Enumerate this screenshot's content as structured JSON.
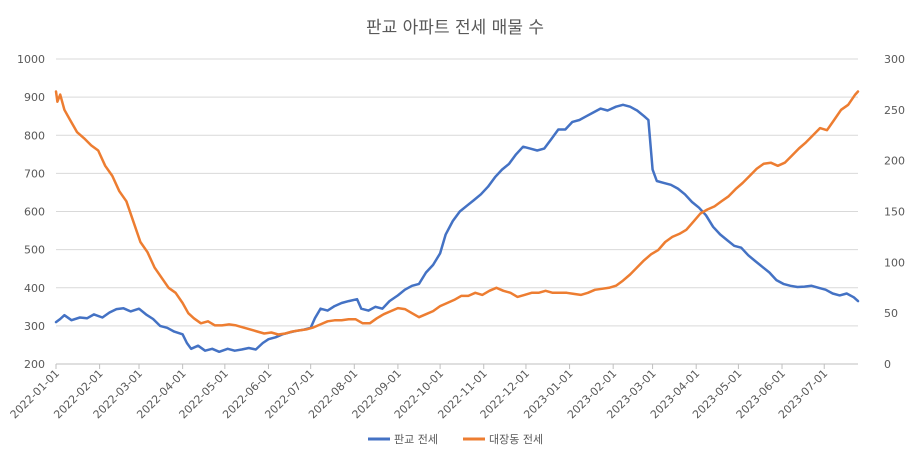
{
  "chart_data": {
    "type": "line",
    "title": "판교 아파트 전세 매물 수",
    "y_left": {
      "min": 200,
      "max": 1000,
      "ticks": [
        "200",
        "300",
        "400",
        "500",
        "600",
        "700",
        "800",
        "900",
        "1000"
      ]
    },
    "y_right": {
      "min": 0,
      "max": 300,
      "ticks": [
        "0",
        "50",
        "100",
        "150",
        "200",
        "250",
        "300"
      ]
    },
    "x_range": [
      "2022-01-01",
      "2023-07-25"
    ],
    "x_ticks": [
      "2022-01-01",
      "2022-02-01",
      "2022-03-01",
      "2022-04-01",
      "2022-05-01",
      "2022-06-01",
      "2022-07-01",
      "2022-08-01",
      "2022-09-01",
      "2022-10-01",
      "2022-11-01",
      "2022-12-01",
      "2023-01-01",
      "2023-02-01",
      "2023-03-01",
      "2023-04-01",
      "2023-05-01",
      "2023-06-01",
      "2023-07-01"
    ],
    "grid": true,
    "legend_position": "bottom",
    "series": [
      {
        "name": "판교 전세",
        "axis": "left",
        "color": "#4472c4",
        "points": [
          [
            "2022-01-01",
            310
          ],
          [
            "2022-01-04",
            318
          ],
          [
            "2022-01-07",
            328
          ],
          [
            "2022-01-12",
            315
          ],
          [
            "2022-01-18",
            322
          ],
          [
            "2022-01-23",
            320
          ],
          [
            "2022-01-28",
            330
          ],
          [
            "2022-02-03",
            322
          ],
          [
            "2022-02-08",
            335
          ],
          [
            "2022-02-13",
            344
          ],
          [
            "2022-02-18",
            346
          ],
          [
            "2022-02-23",
            338
          ],
          [
            "2022-03-01",
            345
          ],
          [
            "2022-03-06",
            330
          ],
          [
            "2022-03-11",
            318
          ],
          [
            "2022-03-16",
            300
          ],
          [
            "2022-03-21",
            295
          ],
          [
            "2022-03-26",
            285
          ],
          [
            "2022-04-01",
            278
          ],
          [
            "2022-04-04",
            255
          ],
          [
            "2022-04-07",
            240
          ],
          [
            "2022-04-12",
            248
          ],
          [
            "2022-04-17",
            235
          ],
          [
            "2022-04-22",
            240
          ],
          [
            "2022-04-27",
            232
          ],
          [
            "2022-05-03",
            240
          ],
          [
            "2022-05-08",
            235
          ],
          [
            "2022-05-13",
            238
          ],
          [
            "2022-05-18",
            242
          ],
          [
            "2022-05-23",
            238
          ],
          [
            "2022-05-28",
            255
          ],
          [
            "2022-06-01",
            265
          ],
          [
            "2022-06-06",
            270
          ],
          [
            "2022-06-11",
            278
          ],
          [
            "2022-06-16",
            283
          ],
          [
            "2022-06-21",
            287
          ],
          [
            "2022-06-26",
            290
          ],
          [
            "2022-07-01",
            295
          ],
          [
            "2022-07-04",
            320
          ],
          [
            "2022-07-08",
            345
          ],
          [
            "2022-07-13",
            340
          ],
          [
            "2022-07-18",
            352
          ],
          [
            "2022-07-23",
            360
          ],
          [
            "2022-07-28",
            365
          ],
          [
            "2022-08-03",
            370
          ],
          [
            "2022-08-06",
            345
          ],
          [
            "2022-08-11",
            340
          ],
          [
            "2022-08-16",
            350
          ],
          [
            "2022-08-21",
            345
          ],
          [
            "2022-08-26",
            365
          ],
          [
            "2022-09-01",
            380
          ],
          [
            "2022-09-06",
            395
          ],
          [
            "2022-09-11",
            405
          ],
          [
            "2022-09-16",
            410
          ],
          [
            "2022-09-21",
            440
          ],
          [
            "2022-09-26",
            460
          ],
          [
            "2022-10-01",
            490
          ],
          [
            "2022-10-05",
            540
          ],
          [
            "2022-10-10",
            575
          ],
          [
            "2022-10-15",
            600
          ],
          [
            "2022-10-20",
            615
          ],
          [
            "2022-10-25",
            630
          ],
          [
            "2022-10-30",
            645
          ],
          [
            "2022-11-04",
            665
          ],
          [
            "2022-11-09",
            690
          ],
          [
            "2022-11-14",
            710
          ],
          [
            "2022-11-19",
            725
          ],
          [
            "2022-11-24",
            750
          ],
          [
            "2022-11-29",
            770
          ],
          [
            "2022-12-04",
            765
          ],
          [
            "2022-12-09",
            760
          ],
          [
            "2022-12-14",
            765
          ],
          [
            "2022-12-19",
            790
          ],
          [
            "2022-12-24",
            815
          ],
          [
            "2022-12-29",
            815
          ],
          [
            "2023-01-03",
            835
          ],
          [
            "2023-01-08",
            840
          ],
          [
            "2023-01-13",
            850
          ],
          [
            "2023-01-18",
            860
          ],
          [
            "2023-01-23",
            870
          ],
          [
            "2023-01-28",
            865
          ],
          [
            "2023-02-03",
            875
          ],
          [
            "2023-02-08",
            880
          ],
          [
            "2023-02-13",
            875
          ],
          [
            "2023-02-18",
            865
          ],
          [
            "2023-02-23",
            850
          ],
          [
            "2023-02-26",
            840
          ],
          [
            "2023-03-01",
            710
          ],
          [
            "2023-03-04",
            680
          ],
          [
            "2023-03-09",
            675
          ],
          [
            "2023-03-14",
            670
          ],
          [
            "2023-03-19",
            660
          ],
          [
            "2023-03-24",
            645
          ],
          [
            "2023-03-29",
            625
          ],
          [
            "2023-04-03",
            610
          ],
          [
            "2023-04-08",
            590
          ],
          [
            "2023-04-13",
            560
          ],
          [
            "2023-04-18",
            540
          ],
          [
            "2023-04-23",
            525
          ],
          [
            "2023-04-28",
            510
          ],
          [
            "2023-05-03",
            505
          ],
          [
            "2023-05-08",
            485
          ],
          [
            "2023-05-13",
            470
          ],
          [
            "2023-05-18",
            455
          ],
          [
            "2023-05-23",
            440
          ],
          [
            "2023-05-28",
            420
          ],
          [
            "2023-06-02",
            410
          ],
          [
            "2023-06-07",
            405
          ],
          [
            "2023-06-12",
            402
          ],
          [
            "2023-06-17",
            403
          ],
          [
            "2023-06-22",
            405
          ],
          [
            "2023-06-27",
            400
          ],
          [
            "2023-07-02",
            395
          ],
          [
            "2023-07-07",
            385
          ],
          [
            "2023-07-12",
            380
          ],
          [
            "2023-07-17",
            385
          ],
          [
            "2023-07-22",
            375
          ],
          [
            "2023-07-25",
            365
          ]
        ]
      },
      {
        "name": "대장동 전세",
        "axis": "right",
        "color": "#ed7d31",
        "points": [
          [
            "2022-01-01",
            268
          ],
          [
            "2022-01-02",
            258
          ],
          [
            "2022-01-04",
            265
          ],
          [
            "2022-01-07",
            250
          ],
          [
            "2022-01-11",
            240
          ],
          [
            "2022-01-16",
            228
          ],
          [
            "2022-01-21",
            222
          ],
          [
            "2022-01-26",
            215
          ],
          [
            "2022-01-31",
            210
          ],
          [
            "2022-02-05",
            195
          ],
          [
            "2022-02-10",
            185
          ],
          [
            "2022-02-15",
            170
          ],
          [
            "2022-02-20",
            160
          ],
          [
            "2022-02-25",
            140
          ],
          [
            "2022-03-02",
            120
          ],
          [
            "2022-03-07",
            110
          ],
          [
            "2022-03-12",
            95
          ],
          [
            "2022-03-17",
            85
          ],
          [
            "2022-03-22",
            75
          ],
          [
            "2022-03-27",
            70
          ],
          [
            "2022-04-01",
            60
          ],
          [
            "2022-04-05",
            50
          ],
          [
            "2022-04-09",
            45
          ],
          [
            "2022-04-14",
            40
          ],
          [
            "2022-04-19",
            42
          ],
          [
            "2022-04-24",
            38
          ],
          [
            "2022-04-29",
            38
          ],
          [
            "2022-05-04",
            39
          ],
          [
            "2022-05-09",
            38
          ],
          [
            "2022-05-14",
            36
          ],
          [
            "2022-05-19",
            34
          ],
          [
            "2022-05-24",
            32
          ],
          [
            "2022-05-29",
            30
          ],
          [
            "2022-06-03",
            31
          ],
          [
            "2022-06-08",
            29
          ],
          [
            "2022-06-13",
            30
          ],
          [
            "2022-06-18",
            32
          ],
          [
            "2022-06-23",
            33
          ],
          [
            "2022-06-28",
            34
          ],
          [
            "2022-07-03",
            36
          ],
          [
            "2022-07-08",
            39
          ],
          [
            "2022-07-13",
            42
          ],
          [
            "2022-07-18",
            43
          ],
          [
            "2022-07-23",
            43
          ],
          [
            "2022-07-28",
            44
          ],
          [
            "2022-08-02",
            44
          ],
          [
            "2022-08-07",
            40
          ],
          [
            "2022-08-12",
            40
          ],
          [
            "2022-08-17",
            45
          ],
          [
            "2022-08-22",
            49
          ],
          [
            "2022-08-27",
            52
          ],
          [
            "2022-09-01",
            55
          ],
          [
            "2022-09-06",
            54
          ],
          [
            "2022-09-11",
            50
          ],
          [
            "2022-09-16",
            46
          ],
          [
            "2022-09-21",
            49
          ],
          [
            "2022-09-26",
            52
          ],
          [
            "2022-10-01",
            57
          ],
          [
            "2022-10-06",
            60
          ],
          [
            "2022-10-11",
            63
          ],
          [
            "2022-10-16",
            67
          ],
          [
            "2022-10-21",
            67
          ],
          [
            "2022-10-26",
            70
          ],
          [
            "2022-10-31",
            68
          ],
          [
            "2022-11-05",
            72
          ],
          [
            "2022-11-10",
            75
          ],
          [
            "2022-11-15",
            72
          ],
          [
            "2022-11-20",
            70
          ],
          [
            "2022-11-25",
            66
          ],
          [
            "2022-11-30",
            68
          ],
          [
            "2022-12-05",
            70
          ],
          [
            "2022-12-10",
            70
          ],
          [
            "2022-12-15",
            72
          ],
          [
            "2022-12-20",
            70
          ],
          [
            "2022-12-25",
            70
          ],
          [
            "2022-12-30",
            70
          ],
          [
            "2023-01-04",
            69
          ],
          [
            "2023-01-09",
            68
          ],
          [
            "2023-01-14",
            70
          ],
          [
            "2023-01-19",
            73
          ],
          [
            "2023-01-24",
            74
          ],
          [
            "2023-01-29",
            75
          ],
          [
            "2023-02-03",
            77
          ],
          [
            "2023-02-08",
            82
          ],
          [
            "2023-02-13",
            88
          ],
          [
            "2023-02-18",
            95
          ],
          [
            "2023-02-23",
            102
          ],
          [
            "2023-02-28",
            108
          ],
          [
            "2023-03-05",
            112
          ],
          [
            "2023-03-10",
            120
          ],
          [
            "2023-03-15",
            125
          ],
          [
            "2023-03-20",
            128
          ],
          [
            "2023-03-25",
            132
          ],
          [
            "2023-03-30",
            140
          ],
          [
            "2023-04-04",
            148
          ],
          [
            "2023-04-09",
            152
          ],
          [
            "2023-04-14",
            155
          ],
          [
            "2023-04-19",
            160
          ],
          [
            "2023-04-24",
            165
          ],
          [
            "2023-04-29",
            172
          ],
          [
            "2023-05-04",
            178
          ],
          [
            "2023-05-09",
            185
          ],
          [
            "2023-05-14",
            192
          ],
          [
            "2023-05-19",
            197
          ],
          [
            "2023-05-24",
            198
          ],
          [
            "2023-05-29",
            195
          ],
          [
            "2023-06-03",
            198
          ],
          [
            "2023-06-08",
            205
          ],
          [
            "2023-06-13",
            212
          ],
          [
            "2023-06-18",
            218
          ],
          [
            "2023-06-23",
            225
          ],
          [
            "2023-06-28",
            232
          ],
          [
            "2023-07-03",
            230
          ],
          [
            "2023-07-08",
            240
          ],
          [
            "2023-07-13",
            250
          ],
          [
            "2023-07-18",
            255
          ],
          [
            "2023-07-23",
            265
          ],
          [
            "2023-07-25",
            268
          ]
        ]
      }
    ]
  }
}
